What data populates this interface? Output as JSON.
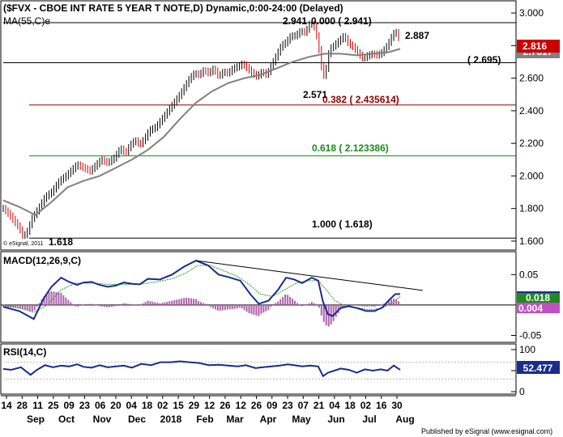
{
  "chart_data": [
    {
      "type": "candlestick",
      "panel": "price",
      "title": "($FVX - CBOE INT RATE 5 YEAR T NOTE,D) Dynamic,0:00-24:00 (Delayed)",
      "indicator_label": "MA(55,C)e",
      "copyright": "© eSignal, 2011",
      "y_ticks": [
        "3.000",
        "2.800",
        "2.600",
        "2.400",
        "2.200",
        "2.000",
        "1.800",
        "1.600"
      ],
      "ylim": [
        1.55,
        3.06
      ],
      "last_price": "2.816",
      "ma_badge": "2.7817",
      "fib_levels": [
        {
          "label": "0.000 ( 2.941)",
          "value": 2.941,
          "color": "#000000"
        },
        {
          "label": "( 2.695)",
          "value": 2.695,
          "color": "#000000"
        },
        {
          "label": "0.382 ( 2.435614)",
          "value": 2.435614,
          "color": "#8b0000"
        },
        {
          "label": "0.618 ( 2.123386)",
          "value": 2.123386,
          "color": "#1a8a1a"
        },
        {
          "label": "1.000 ( 1.618)",
          "value": 1.618,
          "color": "#000000"
        }
      ],
      "annotations": [
        {
          "label": "2.941",
          "value": 2.941
        },
        {
          "label": "2.887",
          "value": 2.887
        },
        {
          "label": "2.571",
          "value": 2.571
        },
        {
          "label": "1.618",
          "value": 1.618
        }
      ],
      "price_path": [
        [
          0,
          1.8
        ],
        [
          8,
          1.76
        ],
        [
          14,
          1.72
        ],
        [
          20,
          1.68
        ],
        [
          25,
          1.625
        ],
        [
          30,
          1.66
        ],
        [
          36,
          1.74
        ],
        [
          44,
          1.8
        ],
        [
          52,
          1.87
        ],
        [
          60,
          1.9
        ],
        [
          70,
          1.97
        ],
        [
          78,
          2.0
        ],
        [
          86,
          2.04
        ],
        [
          92,
          2.07
        ],
        [
          100,
          2.05
        ],
        [
          108,
          2.03
        ],
        [
          114,
          2.06
        ],
        [
          122,
          2.1
        ],
        [
          130,
          2.08
        ],
        [
          138,
          2.11
        ],
        [
          146,
          2.17
        ],
        [
          152,
          2.14
        ],
        [
          158,
          2.19
        ],
        [
          164,
          2.22
        ],
        [
          170,
          2.19
        ],
        [
          176,
          2.23
        ],
        [
          182,
          2.28
        ],
        [
          190,
          2.3
        ],
        [
          196,
          2.34
        ],
        [
          202,
          2.38
        ],
        [
          208,
          2.42
        ],
        [
          214,
          2.46
        ],
        [
          220,
          2.5
        ],
        [
          226,
          2.55
        ],
        [
          232,
          2.6
        ],
        [
          238,
          2.63
        ],
        [
          244,
          2.62
        ],
        [
          250,
          2.65
        ],
        [
          256,
          2.63
        ],
        [
          262,
          2.66
        ],
        [
          268,
          2.61
        ],
        [
          274,
          2.64
        ],
        [
          280,
          2.63
        ],
        [
          286,
          2.66
        ],
        [
          292,
          2.67
        ],
        [
          298,
          2.69
        ],
        [
          304,
          2.66
        ],
        [
          310,
          2.63
        ],
        [
          316,
          2.61
        ],
        [
          322,
          2.64
        ],
        [
          328,
          2.62
        ],
        [
          334,
          2.68
        ],
        [
          340,
          2.74
        ],
        [
          346,
          2.8
        ],
        [
          352,
          2.82
        ],
        [
          358,
          2.86
        ],
        [
          364,
          2.86
        ],
        [
          370,
          2.89
        ],
        [
          376,
          2.88
        ],
        [
          382,
          2.94
        ],
        [
          388,
          2.91
        ],
        [
          392,
          2.81
        ],
        [
          396,
          2.67
        ],
        [
          400,
          2.6
        ],
        [
          406,
          2.78
        ],
        [
          412,
          2.8
        ],
        [
          418,
          2.83
        ],
        [
          424,
          2.86
        ],
        [
          430,
          2.81
        ],
        [
          436,
          2.79
        ],
        [
          442,
          2.75
        ],
        [
          448,
          2.72
        ],
        [
          454,
          2.74
        ],
        [
          460,
          2.75
        ],
        [
          466,
          2.74
        ],
        [
          472,
          2.76
        ],
        [
          478,
          2.8
        ],
        [
          484,
          2.86
        ],
        [
          488,
          2.89
        ],
        [
          492,
          2.85
        ],
        [
          494,
          2.816
        ]
      ],
      "ma_path": [
        [
          0,
          1.85
        ],
        [
          20,
          1.81
        ],
        [
          40,
          1.76
        ],
        [
          60,
          1.84
        ],
        [
          80,
          1.93
        ],
        [
          100,
          1.97
        ],
        [
          120,
          2.0
        ],
        [
          140,
          2.05
        ],
        [
          160,
          2.1
        ],
        [
          180,
          2.16
        ],
        [
          200,
          2.24
        ],
        [
          220,
          2.35
        ],
        [
          240,
          2.45
        ],
        [
          260,
          2.52
        ],
        [
          280,
          2.57
        ],
        [
          300,
          2.6
        ],
        [
          320,
          2.62
        ],
        [
          340,
          2.66
        ],
        [
          360,
          2.7
        ],
        [
          380,
          2.73
        ],
        [
          400,
          2.75
        ],
        [
          420,
          2.75
        ],
        [
          440,
          2.74
        ],
        [
          460,
          2.75
        ],
        [
          480,
          2.76
        ],
        [
          494,
          2.78
        ]
      ]
    },
    {
      "type": "line",
      "panel": "macd",
      "label": "MACD(12,26,9,C)",
      "y_ticks": [
        "0.05",
        "-0.05"
      ],
      "ylim": [
        -0.06,
        0.085
      ],
      "value_labels": [
        "0.018",
        "0.004"
      ],
      "macd_path": [
        [
          0,
          -0.003
        ],
        [
          20,
          -0.01
        ],
        [
          38,
          -0.023
        ],
        [
          50,
          0.01
        ],
        [
          60,
          0.03
        ],
        [
          72,
          0.045
        ],
        [
          82,
          0.038
        ],
        [
          92,
          0.033
        ],
        [
          100,
          0.037
        ],
        [
          110,
          0.038
        ],
        [
          120,
          0.033
        ],
        [
          130,
          0.03
        ],
        [
          140,
          0.032
        ],
        [
          150,
          0.037
        ],
        [
          160,
          0.035
        ],
        [
          170,
          0.034
        ],
        [
          180,
          0.043
        ],
        [
          195,
          0.042
        ],
        [
          210,
          0.05
        ],
        [
          225,
          0.063
        ],
        [
          240,
          0.073
        ],
        [
          255,
          0.065
        ],
        [
          268,
          0.05
        ],
        [
          280,
          0.046
        ],
        [
          295,
          0.04
        ],
        [
          308,
          0.017
        ],
        [
          318,
          0.002
        ],
        [
          330,
          0.007
        ],
        [
          342,
          0.025
        ],
        [
          352,
          0.045
        ],
        [
          362,
          0.042
        ],
        [
          372,
          0.036
        ],
        [
          384,
          0.045
        ],
        [
          392,
          0.04
        ],
        [
          398,
          0.005
        ],
        [
          404,
          -0.015
        ],
        [
          410,
          -0.018
        ],
        [
          420,
          -0.005
        ],
        [
          430,
          -0.002
        ],
        [
          440,
          -0.005
        ],
        [
          452,
          -0.01
        ],
        [
          462,
          -0.01
        ],
        [
          472,
          -0.004
        ],
        [
          480,
          0.008
        ],
        [
          488,
          0.018
        ],
        [
          494,
          0.018
        ]
      ],
      "signal_path": [
        [
          0,
          0.0
        ],
        [
          20,
          -0.005
        ],
        [
          38,
          -0.012
        ],
        [
          55,
          0.0
        ],
        [
          72,
          0.025
        ],
        [
          90,
          0.036
        ],
        [
          110,
          0.036
        ],
        [
          130,
          0.034
        ],
        [
          150,
          0.034
        ],
        [
          170,
          0.034
        ],
        [
          190,
          0.038
        ],
        [
          210,
          0.043
        ],
        [
          228,
          0.053
        ],
        [
          242,
          0.065
        ],
        [
          258,
          0.065
        ],
        [
          275,
          0.056
        ],
        [
          290,
          0.048
        ],
        [
          305,
          0.035
        ],
        [
          320,
          0.018
        ],
        [
          335,
          0.014
        ],
        [
          350,
          0.025
        ],
        [
          365,
          0.036
        ],
        [
          380,
          0.04
        ],
        [
          392,
          0.04
        ],
        [
          402,
          0.025
        ],
        [
          412,
          0.008
        ],
        [
          425,
          -0.002
        ],
        [
          440,
          -0.004
        ],
        [
          455,
          -0.008
        ],
        [
          470,
          -0.006
        ],
        [
          485,
          0.004
        ],
        [
          494,
          0.014
        ]
      ],
      "trendline": [
        [
          240,
          0.073
        ],
        [
          522,
          0.024
        ]
      ]
    },
    {
      "type": "line",
      "panel": "rsi",
      "label": "RSI(14,C)",
      "y_ticks": [
        "100",
        "50",
        "0"
      ],
      "ylim": [
        0,
        100
      ],
      "value_label": "52.477",
      "rsi_path": [
        [
          0,
          54
        ],
        [
          10,
          52
        ],
        [
          22,
          58
        ],
        [
          34,
          40
        ],
        [
          42,
          52
        ],
        [
          52,
          63
        ],
        [
          62,
          58
        ],
        [
          72,
          62
        ],
        [
          82,
          60
        ],
        [
          92,
          65
        ],
        [
          100,
          59
        ],
        [
          110,
          57
        ],
        [
          120,
          63
        ],
        [
          130,
          58
        ],
        [
          140,
          60
        ],
        [
          150,
          62
        ],
        [
          160,
          57
        ],
        [
          172,
          66
        ],
        [
          184,
          63
        ],
        [
          196,
          70
        ],
        [
          208,
          70
        ],
        [
          220,
          72
        ],
        [
          232,
          70
        ],
        [
          244,
          68
        ],
        [
          256,
          63
        ],
        [
          268,
          64
        ],
        [
          280,
          62
        ],
        [
          292,
          60
        ],
        [
          302,
          63
        ],
        [
          314,
          56
        ],
        [
          322,
          58
        ],
        [
          334,
          60
        ],
        [
          344,
          62
        ],
        [
          354,
          65
        ],
        [
          362,
          63
        ],
        [
          372,
          60
        ],
        [
          382,
          62
        ],
        [
          392,
          60
        ],
        [
          398,
          37
        ],
        [
          404,
          45
        ],
        [
          412,
          50
        ],
        [
          420,
          55
        ],
        [
          430,
          52
        ],
        [
          440,
          45
        ],
        [
          450,
          53
        ],
        [
          460,
          50
        ],
        [
          470,
          53
        ],
        [
          478,
          50
        ],
        [
          486,
          62
        ],
        [
          494,
          52
        ]
      ]
    }
  ],
  "x_axis": {
    "day_labels": [
      "14",
      "28",
      "11",
      "25",
      "09",
      "23",
      "06",
      "20",
      "04",
      "18",
      "02",
      "15",
      "29",
      "12",
      "26",
      "12",
      "26",
      "09",
      "23",
      "07",
      "21",
      "04",
      "18",
      "02",
      "16",
      "30"
    ],
    "month_labels": [
      "Sep",
      "Oct",
      "Nov",
      "Dec",
      "2018",
      "Feb",
      "Mar",
      "Apr",
      "May",
      "Jun",
      "Jul",
      "Aug"
    ]
  },
  "footer": "Published by eSignal (www.esignal.com)",
  "colors": {
    "price": "#000000",
    "ma": "#808080",
    "macd": "#1a2c8c",
    "signal": "#2ca02c",
    "histogram": "#b060b0",
    "rsi": "#1a2c8c",
    "badge_red": "#cc0000",
    "badge_green": "#1e8c1e",
    "badge_blue": "#1a2c8c",
    "badge_pink": "#c050c0"
  }
}
